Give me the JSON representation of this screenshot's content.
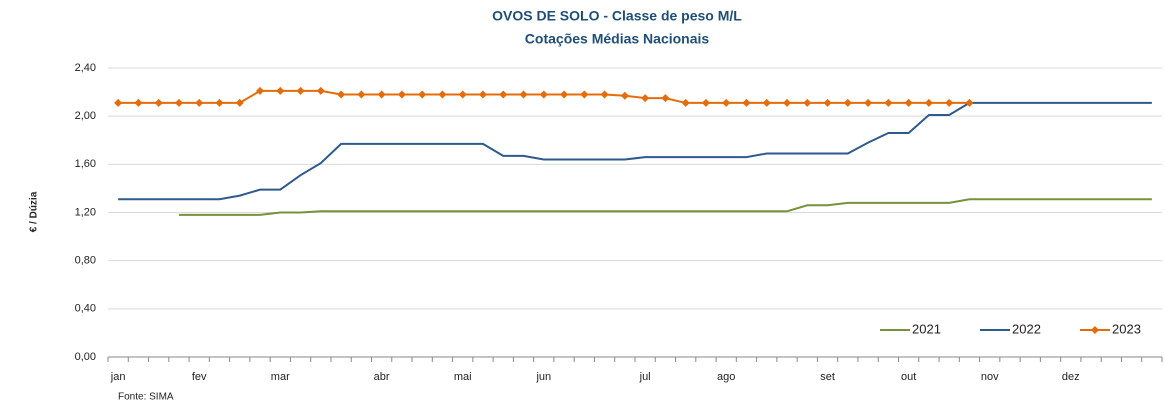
{
  "chart_data": {
    "type": "line",
    "title": "OVOS DE SOLO - Classe de peso M/L",
    "subtitle": "Cotações Médias Nacionais",
    "y_label": "€ / Dúzia",
    "source": "Fonte: SIMA",
    "categories": [
      "jan",
      null,
      null,
      null,
      "fev",
      null,
      null,
      null,
      "mar",
      null,
      null,
      null,
      null,
      "abr",
      null,
      null,
      null,
      "mai",
      null,
      null,
      null,
      "jun",
      null,
      null,
      null,
      null,
      "jul",
      null,
      null,
      null,
      "ago",
      null,
      null,
      null,
      null,
      "set",
      null,
      null,
      null,
      "out",
      null,
      null,
      null,
      "nov",
      null,
      null,
      null,
      "dez",
      null,
      null,
      null,
      null
    ],
    "ylim": [
      0,
      2.4
    ],
    "yticks": [
      {
        "value": 0,
        "label": "0,00"
      },
      {
        "value": 0.4,
        "label": "0,40"
      },
      {
        "value": 0.8,
        "label": "0,80"
      },
      {
        "value": 1.2,
        "label": "1,20"
      },
      {
        "value": 1.6,
        "label": "1,60"
      },
      {
        "value": 2.0,
        "label": "2,00"
      },
      {
        "value": 2.4,
        "label": "2,40"
      }
    ],
    "grid": true,
    "legend": "lower right",
    "series": [
      {
        "name": "2021",
        "color": "#76923c",
        "marker": false,
        "values": [
          null,
          null,
          null,
          1.18,
          1.18,
          1.18,
          1.18,
          1.18,
          1.2,
          1.2,
          1.21,
          1.21,
          1.21,
          1.21,
          1.21,
          1.21,
          1.21,
          1.21,
          1.21,
          1.21,
          1.21,
          1.21,
          1.21,
          1.21,
          1.21,
          1.21,
          1.21,
          1.21,
          1.21,
          1.21,
          1.21,
          1.21,
          1.21,
          1.21,
          1.26,
          1.26,
          1.28,
          1.28,
          1.28,
          1.28,
          1.28,
          1.28,
          1.31,
          1.31,
          1.31,
          1.31,
          1.31,
          1.31,
          1.31,
          1.31,
          1.31,
          1.31
        ]
      },
      {
        "name": "2022",
        "color": "#2e5a8e",
        "marker": false,
        "values": [
          1.31,
          1.31,
          1.31,
          1.31,
          1.31,
          1.31,
          1.34,
          1.39,
          1.39,
          1.51,
          1.61,
          1.77,
          1.77,
          1.77,
          1.77,
          1.77,
          1.77,
          1.77,
          1.77,
          1.67,
          1.67,
          1.64,
          1.64,
          1.64,
          1.64,
          1.64,
          1.66,
          1.66,
          1.66,
          1.66,
          1.66,
          1.66,
          1.69,
          1.69,
          1.69,
          1.69,
          1.69,
          1.78,
          1.86,
          1.86,
          2.01,
          2.01,
          2.11,
          2.11,
          2.11,
          2.11,
          2.11,
          2.11,
          2.11,
          2.11,
          2.11,
          2.11
        ]
      },
      {
        "name": "2023",
        "color": "#e46c0a",
        "marker": true,
        "values": [
          2.11,
          2.11,
          2.11,
          2.11,
          2.11,
          2.11,
          2.11,
          2.21,
          2.21,
          2.21,
          2.21,
          2.18,
          2.18,
          2.18,
          2.18,
          2.18,
          2.18,
          2.18,
          2.18,
          2.18,
          2.18,
          2.18,
          2.18,
          2.18,
          2.18,
          2.17,
          2.15,
          2.15,
          2.11,
          2.11,
          2.11,
          2.11,
          2.11,
          2.11,
          2.11,
          2.11,
          2.11,
          2.11,
          2.11,
          2.11,
          2.11,
          2.11,
          2.11,
          null,
          null,
          null,
          null,
          null,
          null,
          null,
          null,
          null
        ]
      }
    ]
  }
}
